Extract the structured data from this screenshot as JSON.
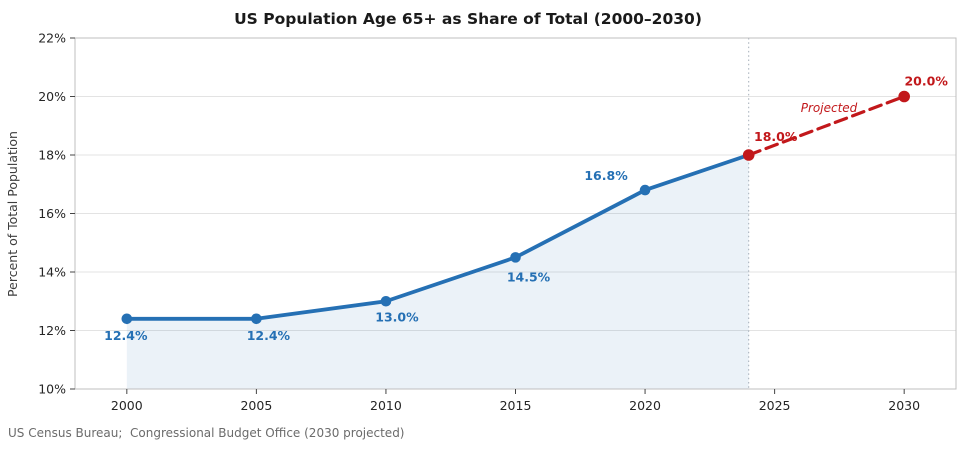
{
  "chart": {
    "title": "US Population Age 65+ as Share of Total (2000–2030)",
    "source_note": "US Census Bureau;  Congressional Budget Office (2030 projected)",
    "chart_data": {
      "type": "line",
      "title": "US Population Age 65+ as Share of Total (2000–2030)",
      "xlabel": "",
      "ylabel": "Percent of Total Population",
      "xlim": [
        1998,
        2032
      ],
      "ylim": [
        10,
        22
      ],
      "xticks": [
        2000,
        2005,
        2010,
        2015,
        2020,
        2025,
        2030
      ],
      "yticks": [
        10,
        12,
        14,
        16,
        18,
        20,
        22
      ],
      "ytick_suffix": "%",
      "grid": "horizontal",
      "legend": "none",
      "divider_x": 2024,
      "series": [
        {
          "name": "historical",
          "color": "#2570b4",
          "line_style": "solid",
          "area_fill": true,
          "x": [
            2000,
            2005,
            2010,
            2015,
            2020,
            2024
          ],
          "values": [
            12.4,
            12.4,
            13.0,
            14.5,
            16.8,
            18.0
          ],
          "markers": [
            2000,
            2005,
            2010,
            2015,
            2020
          ],
          "labels": [
            "12.4%",
            "12.4%",
            "13.0%",
            "14.5%",
            "16.8%",
            ""
          ],
          "label_offsets": [
            [
              -1,
              17
            ],
            [
              12,
              17
            ],
            [
              11,
              16
            ],
            [
              13,
              20
            ],
            [
              -39,
              -14
            ],
            [
              0,
              0
            ]
          ]
        },
        {
          "name": "projected",
          "color": "#c2181b",
          "line_style": "dashed",
          "area_fill": false,
          "x": [
            2024,
            2030
          ],
          "values": [
            18.0,
            20.0
          ],
          "markers": [
            2024,
            2030
          ],
          "labels": [
            "18.0%",
            "20.0%"
          ],
          "label_offsets": [
            [
              27,
              -18
            ],
            [
              22,
              -15
            ]
          ]
        }
      ],
      "annotations": [
        {
          "text": "Projected",
          "x": 2027.1,
          "y": 19.6,
          "style": "italic",
          "color": "#c2181b"
        }
      ]
    },
    "colors": {
      "historical": "#2570b4",
      "projected": "#c2181b",
      "grid": "#e3e3e3",
      "spine": "#bfbfbf",
      "tick": "#444444",
      "divider": "#a3adb8",
      "area": "rgba(37, 112, 180, 0.09)"
    }
  }
}
